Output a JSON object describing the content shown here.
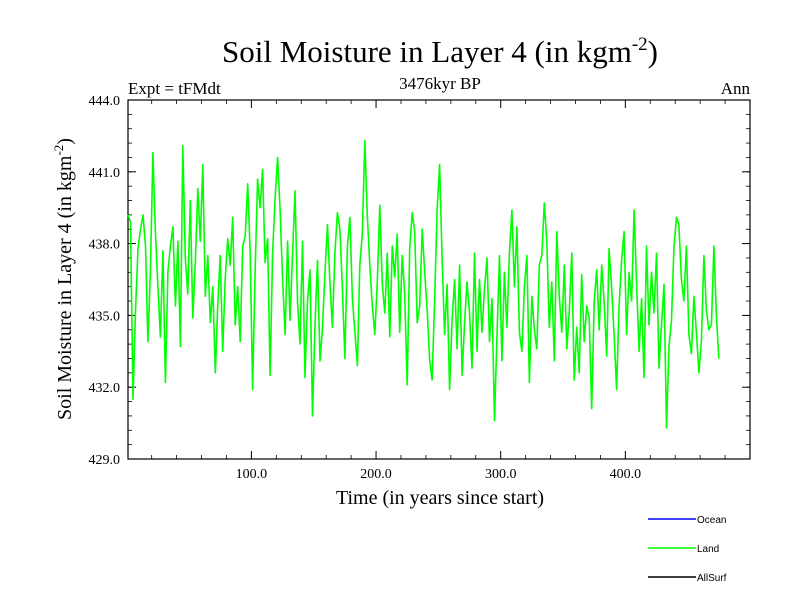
{
  "chart_data": {
    "type": "line",
    "title_main": "Soil Moisture in Layer 4 (in kgm",
    "title_sup": "-2",
    "title_close": ")",
    "subtitle": "3476kyr BP",
    "left_label": "Expt = tFMdt",
    "right_label": "Ann",
    "xlabel": "Time (in years since start)",
    "ylabel_main": "Soil Moisture in Layer 4 (in kgm",
    "ylabel_sup": "-2",
    "ylabel_close": ")",
    "xlim": [
      1,
      500
    ],
    "ylim": [
      429.0,
      444.0
    ],
    "xticks": [
      100,
      200,
      300,
      400
    ],
    "xtick_labels": [
      "100.0",
      "200.0",
      "300.0",
      "400.0"
    ],
    "yticks": [
      429,
      432,
      435,
      438,
      441,
      444
    ],
    "ytick_labels": [
      "429.0",
      "432.0",
      "435.0",
      "438.0",
      "441.0",
      "444.0"
    ],
    "legend": [
      {
        "name": "Ocean",
        "color": "#0000ff"
      },
      {
        "name": "Land",
        "color": "#00ff00"
      },
      {
        "name": "AllSurf",
        "color": "#000000"
      }
    ],
    "series": [
      {
        "name": "Land",
        "color": "#00ff00",
        "x_start": 1,
        "x_step": 2,
        "values": [
          439.2,
          438.9,
          431.5,
          435.2,
          437.8,
          438.6,
          439.2,
          437.9,
          433.9,
          436.8,
          441.8,
          438.5,
          436.2,
          434.1,
          437.7,
          432.2,
          436.8,
          437.9,
          438.7,
          435.4,
          438.1,
          433.7,
          442.1,
          437.4,
          435.9,
          439.8,
          434.9,
          437.2,
          440.3,
          438.1,
          441.3,
          435.8,
          437.5,
          434.7,
          436.2,
          432.6,
          435.4,
          437.5,
          433.5,
          436.5,
          438.2,
          437.1,
          439.1,
          434.6,
          436.2,
          433.9,
          437.9,
          438.3,
          440.5,
          437.6,
          431.9,
          436.8,
          440.7,
          439.5,
          441.1,
          437.2,
          438.2,
          432.5,
          437.6,
          439.9,
          441.6,
          439.4,
          436.5,
          434.2,
          438.1,
          434.8,
          437.5,
          440.2,
          435.6,
          433.8,
          438.1,
          432.4,
          435.6,
          436.9,
          430.8,
          434.6,
          437.3,
          433.1,
          434.5,
          436.7,
          438.8,
          436.4,
          434.5,
          437.6,
          439.3,
          438.6,
          436.1,
          433.2,
          437.9,
          439.1,
          435.7,
          434.3,
          432.9,
          437.1,
          438.4,
          442.3,
          439.2,
          437.1,
          435.4,
          434.2,
          436.4,
          439.6,
          436.3,
          435.1,
          437.6,
          434.1,
          437.9,
          436.6,
          438.4,
          434.3,
          437.5,
          435.9,
          432.1,
          437.8,
          439.3,
          438.5,
          434.7,
          435.4,
          438.6,
          436.8,
          435.2,
          433.1,
          432.3,
          435.6,
          439.4,
          441.3,
          437.4,
          434.2,
          436.3,
          431.9,
          434.8,
          436.5,
          433.6,
          437.1,
          432.5,
          434.7,
          436.4,
          435.1,
          432.8,
          437.6,
          433.5,
          436.5,
          434.3,
          436.1,
          437.4,
          433.9,
          435.7,
          430.6,
          434.2,
          437.5,
          433.1,
          436.8,
          434.5,
          437.6,
          439.4,
          436.2,
          438.7,
          434.3,
          433.5,
          436.2,
          437.5,
          432.2,
          435.8,
          434.4,
          433.6,
          437.1,
          437.5,
          439.7,
          438.1,
          434.5,
          436.4,
          433.1,
          438.5,
          435.8,
          434.3,
          437.1,
          433.6,
          435.2,
          437.6,
          432.3,
          434.5,
          432.6,
          436.7,
          433.9,
          435.4,
          434.9,
          431.1,
          435.6,
          436.9,
          434.4,
          437.1,
          435.5,
          433.3,
          437.8,
          436.2,
          434.2,
          431.9,
          435.4,
          437.3,
          438.5,
          434.2,
          436.8,
          435.6,
          439.4,
          436.3,
          433.5,
          435.7,
          432.4,
          437.9,
          434.6,
          436.8,
          435.1,
          437.6,
          432.8,
          434.6,
          436.3,
          430.3,
          433.7,
          434.8,
          437.9,
          439.1,
          438.8,
          436.5,
          435.6,
          437.9,
          434.2,
          433.4,
          435.8,
          434.3,
          432.6,
          433.9,
          437.5,
          435.2,
          434.4,
          434.6,
          437.9,
          435.1,
          433.2
        ]
      }
    ]
  }
}
